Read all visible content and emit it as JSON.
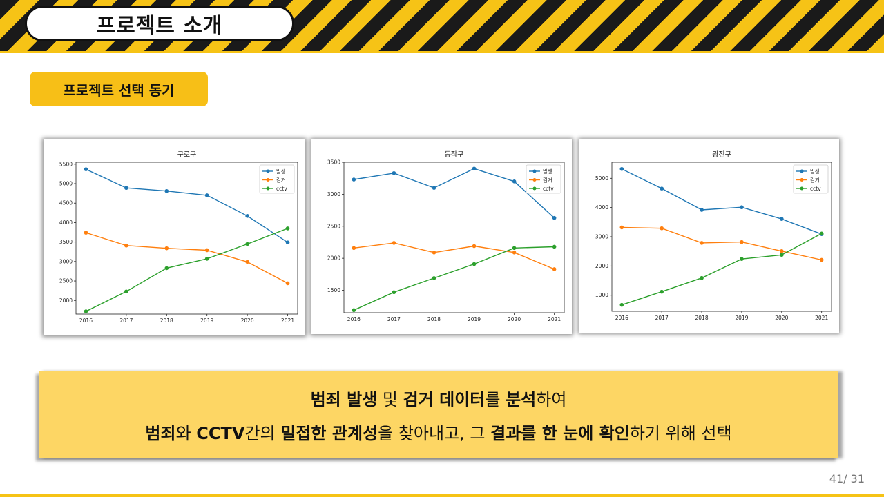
{
  "header": {
    "title": "프로젝트 소개"
  },
  "section": {
    "label": "프로젝트 선택 동기"
  },
  "summary": {
    "line1": [
      {
        "text": "범죄 발생",
        "bold": true
      },
      {
        "text": " 및 ",
        "bold": false
      },
      {
        "text": "검거 데이터",
        "bold": true
      },
      {
        "text": "를 ",
        "bold": false
      },
      {
        "text": "분석",
        "bold": true
      },
      {
        "text": "하여",
        "bold": false
      }
    ],
    "line2": [
      {
        "text": "범죄",
        "bold": true
      },
      {
        "text": "와 ",
        "bold": false
      },
      {
        "text": "CCTV",
        "bold": true
      },
      {
        "text": "간의 ",
        "bold": false
      },
      {
        "text": "밀접한 관계성",
        "bold": true
      },
      {
        "text": "을 찾아내고, 그 ",
        "bold": false
      },
      {
        "text": "결과를 한 눈에 확인",
        "bold": true
      },
      {
        "text": "하기 위해 선택",
        "bold": false
      }
    ]
  },
  "page_number": "41/ 31",
  "colors": {
    "hazard_yellow": "#f6c316",
    "hazard_black": "#1a1a1a",
    "summary_bg": "#fdd664",
    "series_blue": "#1f77b4",
    "series_orange": "#ff7f0e",
    "series_green": "#2ca02c"
  },
  "chart_data": [
    {
      "type": "line",
      "title": "구로구",
      "x": [
        2016,
        2017,
        2018,
        2019,
        2020,
        2021
      ],
      "ylim": [
        1650,
        5550
      ],
      "yticks": [
        2000,
        2500,
        3000,
        3500,
        4000,
        4500,
        5000,
        5500
      ],
      "legend": "top-right",
      "grid": false,
      "series": [
        {
          "name": "발생",
          "color": "#1f77b4",
          "values": [
            5370,
            4890,
            4810,
            4700,
            4170,
            3490
          ]
        },
        {
          "name": "검거",
          "color": "#ff7f0e",
          "values": [
            3740,
            3410,
            3340,
            3290,
            2990,
            2440
          ]
        },
        {
          "name": "cctv",
          "color": "#2ca02c",
          "values": [
            1720,
            2230,
            2830,
            3070,
            3450,
            3850
          ]
        }
      ]
    },
    {
      "type": "line",
      "title": "동작구",
      "x": [
        2016,
        2017,
        2018,
        2019,
        2020,
        2021
      ],
      "ylim": [
        1150,
        3500
      ],
      "yticks": [
        1500,
        2000,
        2500,
        3000,
        3500
      ],
      "legend": "top-right",
      "grid": false,
      "series": [
        {
          "name": "발생",
          "color": "#1f77b4",
          "values": [
            3230,
            3330,
            3100,
            3400,
            3200,
            2630
          ]
        },
        {
          "name": "검거",
          "color": "#ff7f0e",
          "values": [
            2160,
            2240,
            2090,
            2190,
            2090,
            1830
          ]
        },
        {
          "name": "cctv",
          "color": "#2ca02c",
          "values": [
            1190,
            1470,
            1690,
            1910,
            2160,
            2180
          ]
        }
      ]
    },
    {
      "type": "line",
      "title": "광진구",
      "x": [
        2016,
        2017,
        2018,
        2019,
        2020,
        2021
      ],
      "ylim": [
        450,
        5550
      ],
      "yticks": [
        1000,
        2000,
        3000,
        4000,
        5000
      ],
      "legend": "top-right",
      "grid": false,
      "series": [
        {
          "name": "발생",
          "color": "#1f77b4",
          "values": [
            5320,
            4650,
            3920,
            4010,
            3610,
            3090
          ]
        },
        {
          "name": "검거",
          "color": "#ff7f0e",
          "values": [
            3320,
            3290,
            2790,
            2820,
            2510,
            2210
          ]
        },
        {
          "name": "cctv",
          "color": "#2ca02c",
          "values": [
            670,
            1120,
            1590,
            2240,
            2380,
            3110
          ]
        }
      ]
    }
  ]
}
